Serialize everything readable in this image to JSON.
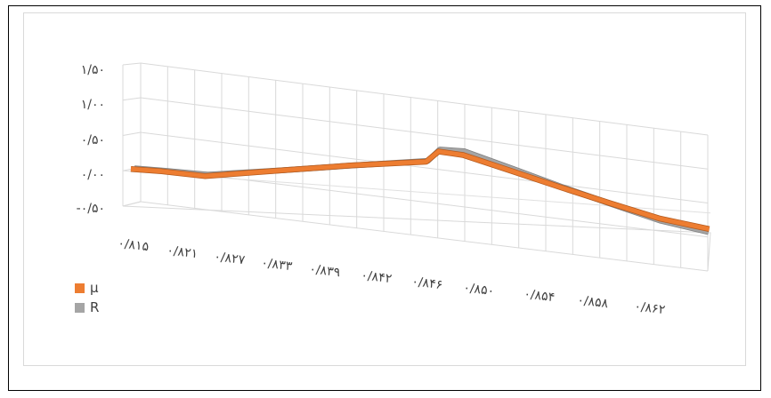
{
  "chart_data": {
    "type": "line",
    "style": "3d",
    "categories": [
      "۰/۸۱۵",
      "۰/۸۲۱",
      "۰/۸۲۷",
      "۰/۸۳۳",
      "۰/۸۳۹",
      "۰/۸۴۲",
      "۰/۸۴۶",
      "۰/۸۵۰",
      "۰/۸۵۴",
      "۰/۸۵۸",
      "۰/۸۶۲"
    ],
    "y_tick_labels": [
      "-۰/۵۰",
      "۰/۰۰",
      "۰/۵۰",
      "۱/۰۰",
      "۱/۵۰"
    ],
    "ylim": [
      -0.5,
      1.5
    ],
    "grid": true,
    "legend_position": "left",
    "series": [
      {
        "name": "μ",
        "color": "#ed7d31",
        "x": [
          0.815,
          0.8175,
          0.821,
          0.827,
          0.833,
          0.839,
          0.84,
          0.842,
          0.846,
          0.85,
          0.854,
          0.858,
          0.862
        ],
        "values": [
          0.0,
          0.01,
          0.0,
          0.19,
          0.39,
          0.58,
          0.77,
          0.76,
          0.58,
          0.39,
          0.2,
          0.01,
          -0.1
        ]
      },
      {
        "name": "R",
        "color": "#a5a5a5",
        "x": [
          0.815,
          0.8175,
          0.821,
          0.827,
          0.833,
          0.839,
          0.84,
          0.842,
          0.846,
          0.85,
          0.854,
          0.858,
          0.862
        ],
        "values": [
          0.0,
          0.01,
          0.02,
          0.2,
          0.4,
          0.6,
          0.8,
          0.82,
          0.63,
          0.43,
          0.24,
          0.05,
          -0.06
        ]
      }
    ]
  }
}
